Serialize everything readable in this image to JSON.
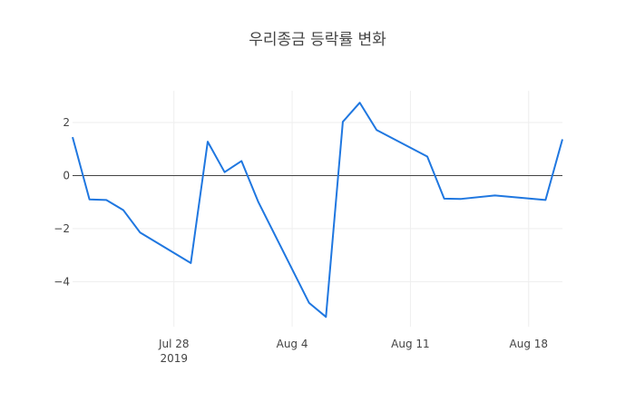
{
  "chart_data": {
    "type": "line",
    "title": "우리종금 등락률 변화",
    "xlabel": "",
    "ylabel": "",
    "x": [
      "2019-07-22",
      "2019-07-23",
      "2019-07-24",
      "2019-07-25",
      "2019-07-26",
      "2019-07-29",
      "2019-07-30",
      "2019-07-31",
      "2019-08-01",
      "2019-08-02",
      "2019-08-05",
      "2019-08-06",
      "2019-08-07",
      "2019-08-08",
      "2019-08-09",
      "2019-08-12",
      "2019-08-13",
      "2019-08-14",
      "2019-08-16",
      "2019-08-19",
      "2019-08-20"
    ],
    "series": [
      {
        "values": [
          1.45,
          -0.9,
          -0.92,
          -1.3,
          -2.15,
          -3.3,
          1.28,
          0.13,
          0.55,
          -1.0,
          -4.8,
          -5.33,
          2.03,
          2.75,
          1.72,
          0.72,
          -0.87,
          -0.88,
          -0.75,
          -0.92,
          1.37
        ],
        "color": "#1f77e0"
      }
    ],
    "xlim": [
      "2019-07-22",
      "2019-08-20"
    ],
    "ylim": [
      -5.7,
      3.2
    ],
    "x_ticks": [
      {
        "date": "2019-07-28",
        "label": "Jul 28",
        "sublabel": "2019"
      },
      {
        "date": "2019-08-04",
        "label": "Aug 4",
        "sublabel": ""
      },
      {
        "date": "2019-08-11",
        "label": "Aug 11",
        "sublabel": ""
      },
      {
        "date": "2019-08-18",
        "label": "Aug 18",
        "sublabel": ""
      }
    ],
    "y_ticks": [
      {
        "value": 2,
        "label": "2"
      },
      {
        "value": 0,
        "label": "0"
      },
      {
        "value": -2,
        "label": "−2"
      },
      {
        "value": -4,
        "label": "−4"
      }
    ],
    "grid": true,
    "zero_line": true,
    "legend": "none",
    "colors": {
      "line": "#1f77e0",
      "grid": "#eeeeee",
      "zero_line": "#444444",
      "text": "#444444"
    }
  }
}
